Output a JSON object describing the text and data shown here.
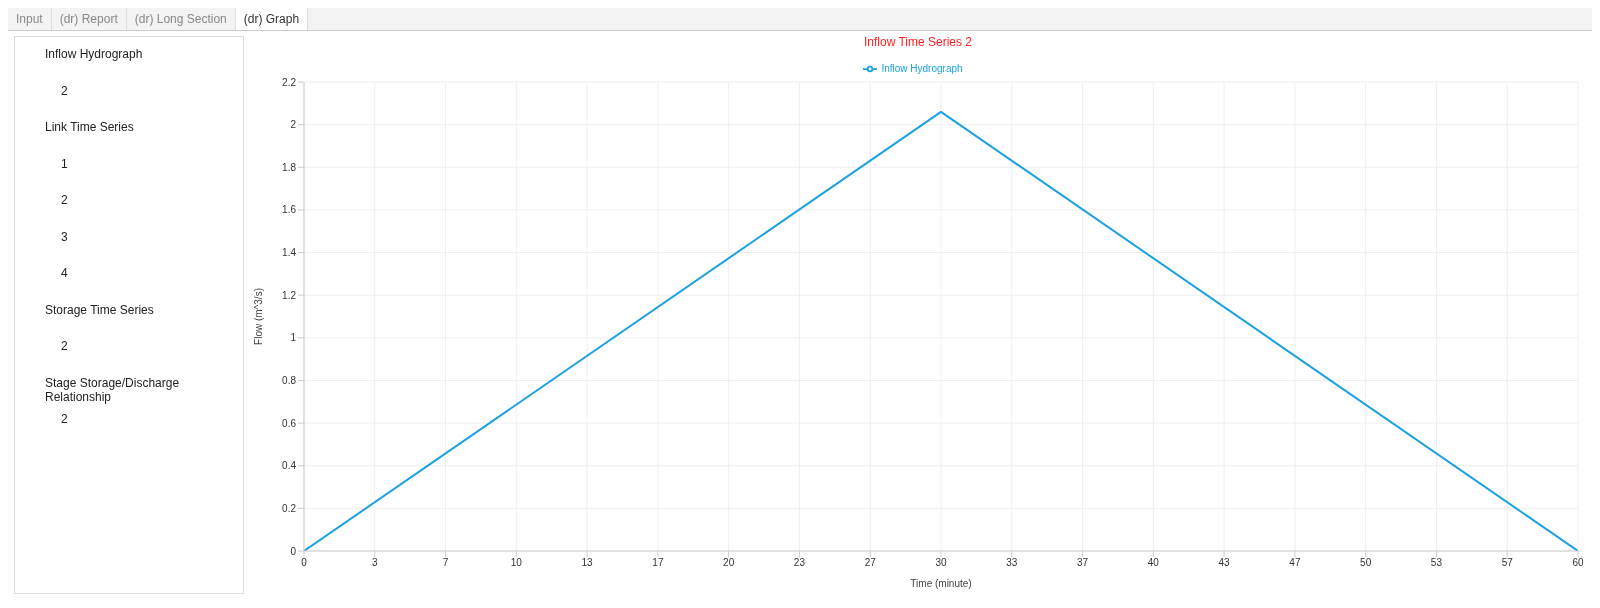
{
  "chart_data": {
    "type": "line",
    "title": "Inflow Time Series 2",
    "xlabel": "Time (minute)",
    "ylabel": "Flow (m^3/s)",
    "annotations": [
      "Input",
      "(dr) Report",
      "(dr) Long Section",
      "(dr) Graph",
      "Inflow Hydrograph",
      "2",
      "Link Time Series",
      "1",
      "2",
      "3",
      "4",
      "Storage Time Series",
      "2",
      "Stage Storage/Discharge Relationship",
      "2"
    ],
    "x": [
      0,
      30,
      60
    ],
    "series": [
      {
        "name": "Inflow Hydrograph",
        "color": "#1ba1e2",
        "values": [
          0,
          2.06,
          0
        ]
      }
    ],
    "xlim": [
      0,
      60
    ],
    "xticks": [
      0,
      {
        "value": 3.333,
        "label": "3"
      },
      {
        "value": 6.667,
        "label": "7"
      },
      10,
      {
        "value": 13.333,
        "label": "13"
      },
      {
        "value": 16.667,
        "label": "17"
      },
      20,
      {
        "value": 23.333,
        "label": "23"
      },
      {
        "value": 26.667,
        "label": "27"
      },
      30,
      {
        "value": 33.333,
        "label": "33"
      },
      {
        "value": 36.667,
        "label": "37"
      },
      40,
      {
        "value": 43.333,
        "label": "43"
      },
      {
        "value": 46.667,
        "label": "47"
      },
      50,
      {
        "value": 53.333,
        "label": "53"
      },
      {
        "value": 56.667,
        "label": "57"
      },
      60
    ],
    "ylim": [
      0,
      2.2
    ],
    "yticks": [
      0,
      0.2,
      0.4,
      0.6,
      0.8,
      1,
      1.2,
      1.4,
      1.6,
      1.8,
      2,
      2.2
    ],
    "grid": true,
    "legend": "top",
    "marker": "none",
    "line_style": "solid"
  }
}
